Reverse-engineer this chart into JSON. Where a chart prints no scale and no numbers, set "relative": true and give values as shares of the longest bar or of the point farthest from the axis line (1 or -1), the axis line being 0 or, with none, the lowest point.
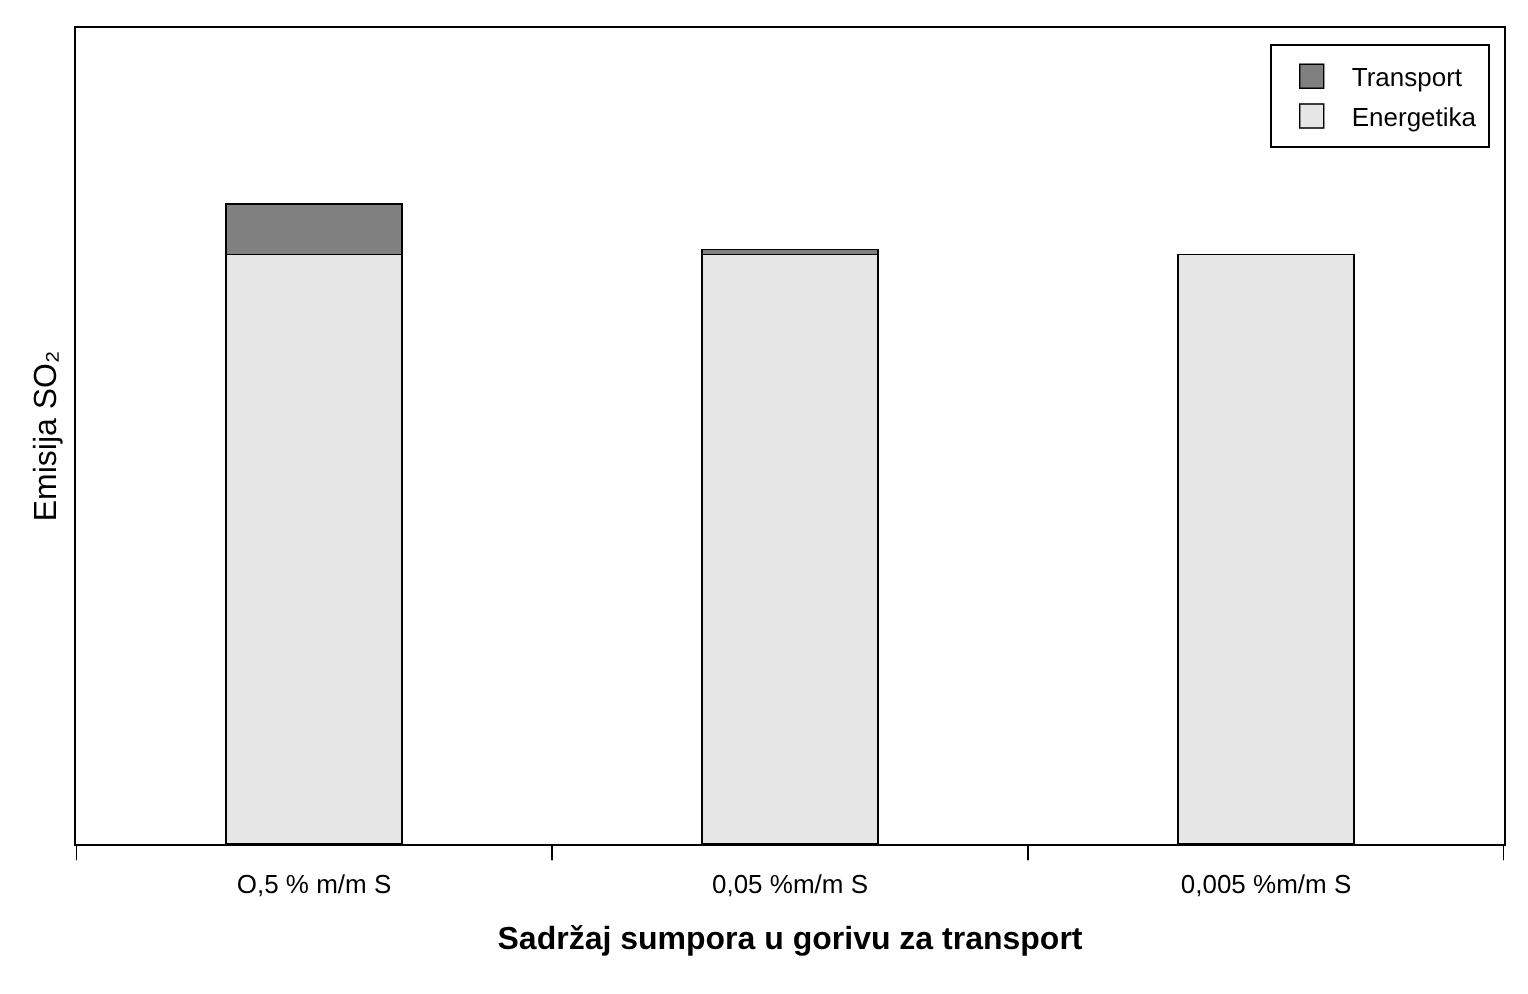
{
  "chart_data": {
    "type": "bar",
    "stacked": true,
    "relative": true,
    "xlabel": "Sadržaj sumpora u gorivu za transport",
    "ylabel": "Emisija SO₂",
    "categories": [
      "O,5 % m/m S",
      "0,05 %m/m S",
      "0,005 %m/m S"
    ],
    "series": [
      {
        "name": "Energetika",
        "color": "#e6e6e6",
        "values": [
          0.921,
          0.921,
          0.921
        ]
      },
      {
        "name": "Transport",
        "color": "#808080",
        "values": [
          0.079,
          0.008,
          0
        ]
      }
    ],
    "legend": "top right",
    "grid": false
  }
}
